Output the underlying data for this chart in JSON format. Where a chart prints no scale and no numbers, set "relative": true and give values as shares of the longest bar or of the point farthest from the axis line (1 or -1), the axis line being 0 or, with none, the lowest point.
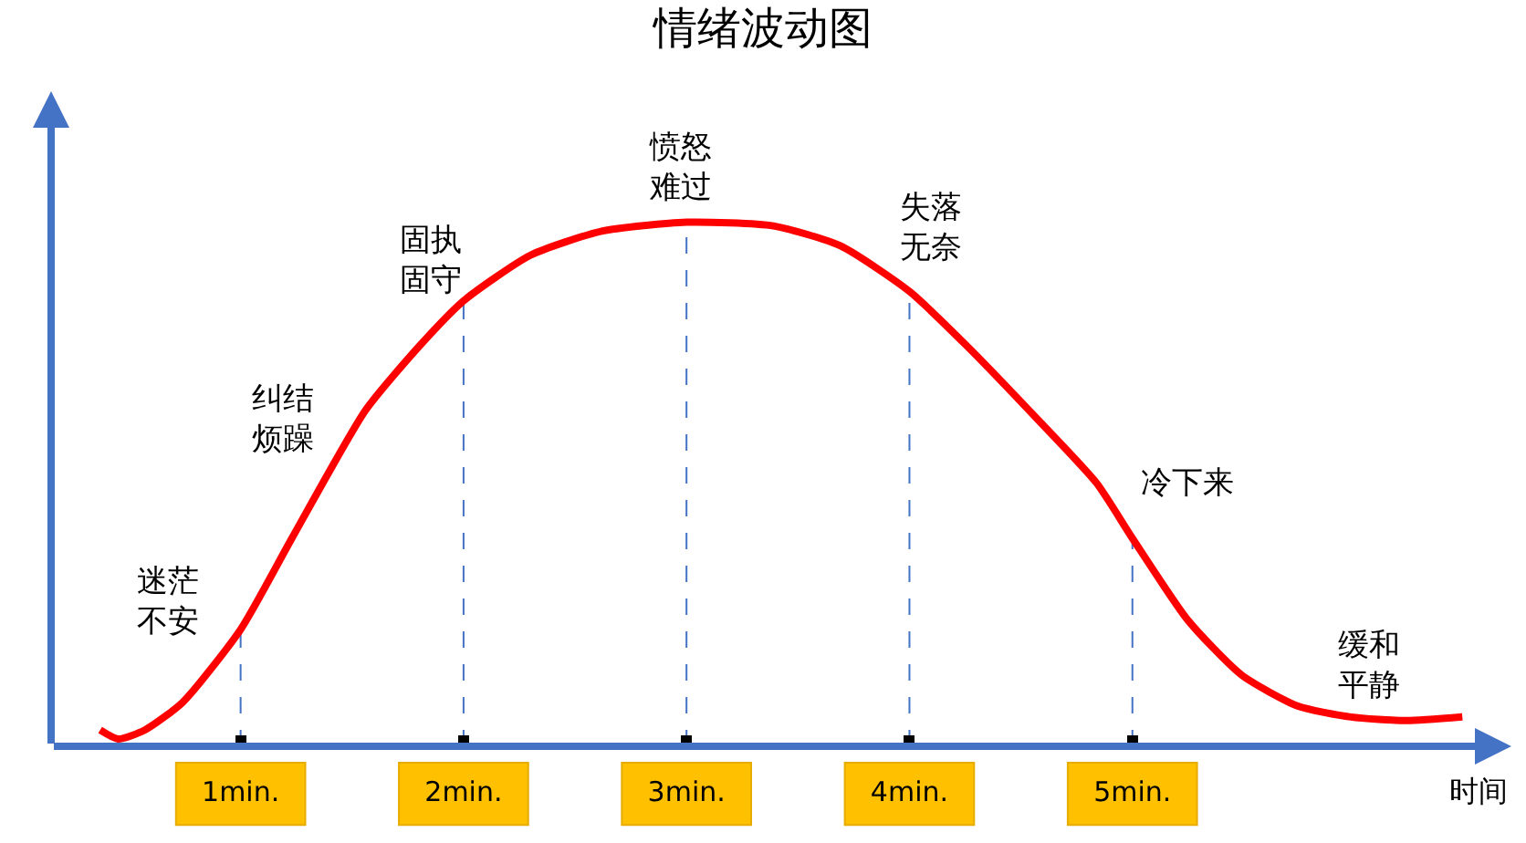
{
  "chart_data": {
    "type": "line",
    "title": "情绪波动图",
    "xlabel": "时间",
    "relative": true,
    "xlim": [
      0.15,
      6.7
    ],
    "xticks": [
      {
        "value": 1,
        "label": "1min."
      },
      {
        "value": 2,
        "label": "2min."
      },
      {
        "value": 3,
        "label": "3min."
      },
      {
        "value": 4,
        "label": "4min."
      },
      {
        "value": 5,
        "label": "5min."
      }
    ],
    "series": [
      {
        "color": "#ff0000",
        "x": [
          0.37,
          0.45,
          0.57,
          0.74,
          1,
          1.23,
          1.56,
          1.8,
          2,
          2.3,
          2.62,
          3,
          3.39,
          3.69,
          4,
          4.26,
          4.59,
          4.84,
          5,
          5.25,
          5.49,
          5.74,
          5.98,
          6.23,
          6.48
        ],
        "values": [
          0.031,
          0.014,
          0.031,
          0.084,
          0.223,
          0.397,
          0.641,
          0.763,
          0.85,
          0.937,
          0.983,
          1,
          0.993,
          0.955,
          0.868,
          0.763,
          0.617,
          0.502,
          0.397,
          0.24,
          0.136,
          0.077,
          0.056,
          0.049,
          0.056
        ]
      }
    ],
    "ref_lines": [
      {
        "axis": "x",
        "value": 1,
        "color": "#4472c4",
        "line_style": "dashed"
      },
      {
        "axis": "x",
        "value": 2,
        "color": "#4472c4",
        "line_style": "dashed"
      },
      {
        "axis": "x",
        "value": 3,
        "color": "#4472c4",
        "line_style": "dashed"
      },
      {
        "axis": "x",
        "value": 4,
        "color": "#4472c4",
        "line_style": "dashed"
      },
      {
        "axis": "x",
        "value": 5,
        "color": "#4472c4",
        "line_style": "dashed"
      }
    ],
    "annotations": [
      "迷茫不安",
      "纠结烦躁",
      "固执固守",
      "愤怒难过",
      "失落无奈",
      "冷下来",
      "缓和平静"
    ],
    "grid": false,
    "marker": "none",
    "line_style": "solid"
  }
}
